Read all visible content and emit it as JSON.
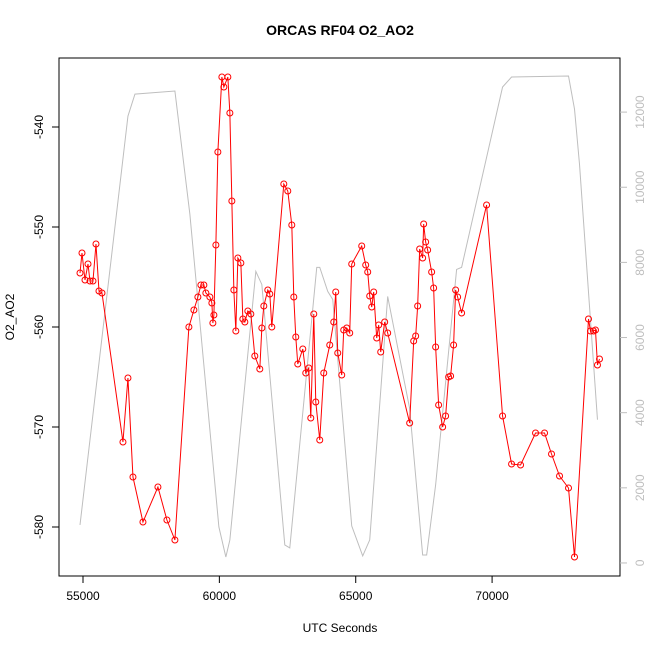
{
  "chart_data": {
    "type": "line",
    "title": "ORCAS RF04 O2_AO2",
    "x_label": "UTC Seconds",
    "y_label": "O2_AO2",
    "xlim": [
      54120,
      74690
    ],
    "ylim": [
      -584.9,
      -533.1
    ],
    "y2lim": [
      -347,
      13440
    ],
    "xticks": [
      55000,
      60000,
      65000,
      70000
    ],
    "yticks": [
      -580,
      -570,
      -560,
      -550,
      -540
    ],
    "y2ticks": [
      0,
      2000,
      4000,
      6000,
      8000,
      10000,
      12000
    ],
    "series": [
      {
        "color": "#bebebe",
        "axis": "y2",
        "markers": false,
        "x": [
          54890,
          56648,
          56905,
          58370,
          58919,
          59982,
          60238,
          60385,
          61337,
          61557,
          62399,
          62582,
          63571,
          63681,
          63974,
          64157,
          64853,
          65256,
          65513,
          66172,
          66978,
          67454,
          67601,
          67930,
          68699,
          68882,
          70384,
          70714,
          72802,
          73022,
          73205,
          73864
        ],
        "values": [
          1013,
          11893,
          12480,
          12560,
          9280,
          960,
          160,
          613,
          7760,
          7413,
          480,
          400,
          7867,
          7867,
          7227,
          7013,
          987,
          187,
          613,
          7093,
          4107,
          213,
          213,
          2080,
          7813,
          7867,
          12667,
          12933,
          12960,
          12080,
          10613,
          3813
        ]
      },
      {
        "color": "#ff0000",
        "axis": "y",
        "markers": true,
        "x": [
          54890,
          54963,
          55073,
          55183,
          55256,
          55366,
          55476,
          55586,
          55696,
          56465,
          56648,
          56832,
          57198,
          57747,
          58077,
          58370,
          58883,
          59066,
          59212,
          59322,
          59432,
          59505,
          59652,
          59725,
          59762,
          59799,
          59872,
          59945,
          60092,
          60165,
          60311,
          60385,
          60458,
          60531,
          60604,
          60678,
          60788,
          60861,
          60934,
          61044,
          61154,
          61300,
          61483,
          61557,
          61630,
          61776,
          61850,
          61923,
          62363,
          62509,
          62656,
          62729,
          62802,
          62875,
          63059,
          63168,
          63278,
          63352,
          63462,
          63535,
          63681,
          63828,
          64048,
          64194,
          64267,
          64341,
          64487,
          64560,
          64670,
          64780,
          64853,
          65220,
          65366,
          65440,
          65513,
          65586,
          65659,
          65769,
          65842,
          65916,
          66062,
          66172,
          66978,
          67125,
          67198,
          67271,
          67344,
          67454,
          67491,
          67564,
          67637,
          67784,
          67857,
          67930,
          68040,
          68187,
          68296,
          68406,
          68479,
          68589,
          68663,
          68736,
          68882,
          69798,
          70384,
          70714,
          71044,
          71593,
          71923,
          72179,
          72473,
          72802,
          73022,
          73535,
          73608,
          73718,
          73791,
          73864,
          73938
        ],
        "values": [
          -554.6,
          -552.6,
          -555.3,
          -553.7,
          -555.4,
          -555.4,
          -551.7,
          -556.4,
          -556.6,
          -571.5,
          -565.1,
          -575.0,
          -579.5,
          -576.0,
          -579.3,
          -581.3,
          -560.0,
          -558.3,
          -557.0,
          -555.8,
          -555.8,
          -556.6,
          -557.0,
          -557.6,
          -559.6,
          -558.8,
          -551.8,
          -542.5,
          -535.0,
          -536.0,
          -535.0,
          -538.6,
          -547.4,
          -556.3,
          -560.4,
          -553.1,
          -553.6,
          -559.2,
          -559.5,
          -558.4,
          -558.7,
          -562.9,
          -564.2,
          -560.1,
          -557.9,
          -556.3,
          -556.7,
          -560.0,
          -545.7,
          -546.4,
          -549.8,
          -557.0,
          -561.0,
          -563.7,
          -562.2,
          -564.6,
          -564.1,
          -569.1,
          -558.7,
          -567.5,
          -571.3,
          -564.6,
          -561.8,
          -559.5,
          -556.5,
          -562.6,
          -564.8,
          -560.3,
          -560.1,
          -560.6,
          -553.7,
          -551.9,
          -553.8,
          -554.5,
          -556.9,
          -558.0,
          -556.5,
          -561.1,
          -559.8,
          -562.5,
          -559.5,
          -560.6,
          -569.6,
          -561.4,
          -560.9,
          -557.9,
          -552.2,
          -553.1,
          -549.7,
          -551.5,
          -552.3,
          -554.5,
          -556.1,
          -562.0,
          -567.8,
          -570.0,
          -568.9,
          -565.0,
          -564.9,
          -561.8,
          -556.3,
          -557.0,
          -558.6,
          -547.8,
          -568.9,
          -573.7,
          -573.8,
          -570.6,
          -570.6,
          -572.7,
          -574.9,
          -576.1,
          -583.0,
          -559.2,
          -560.4,
          -560.4,
          -560.3,
          -563.8,
          -563.2
        ]
      }
    ]
  }
}
